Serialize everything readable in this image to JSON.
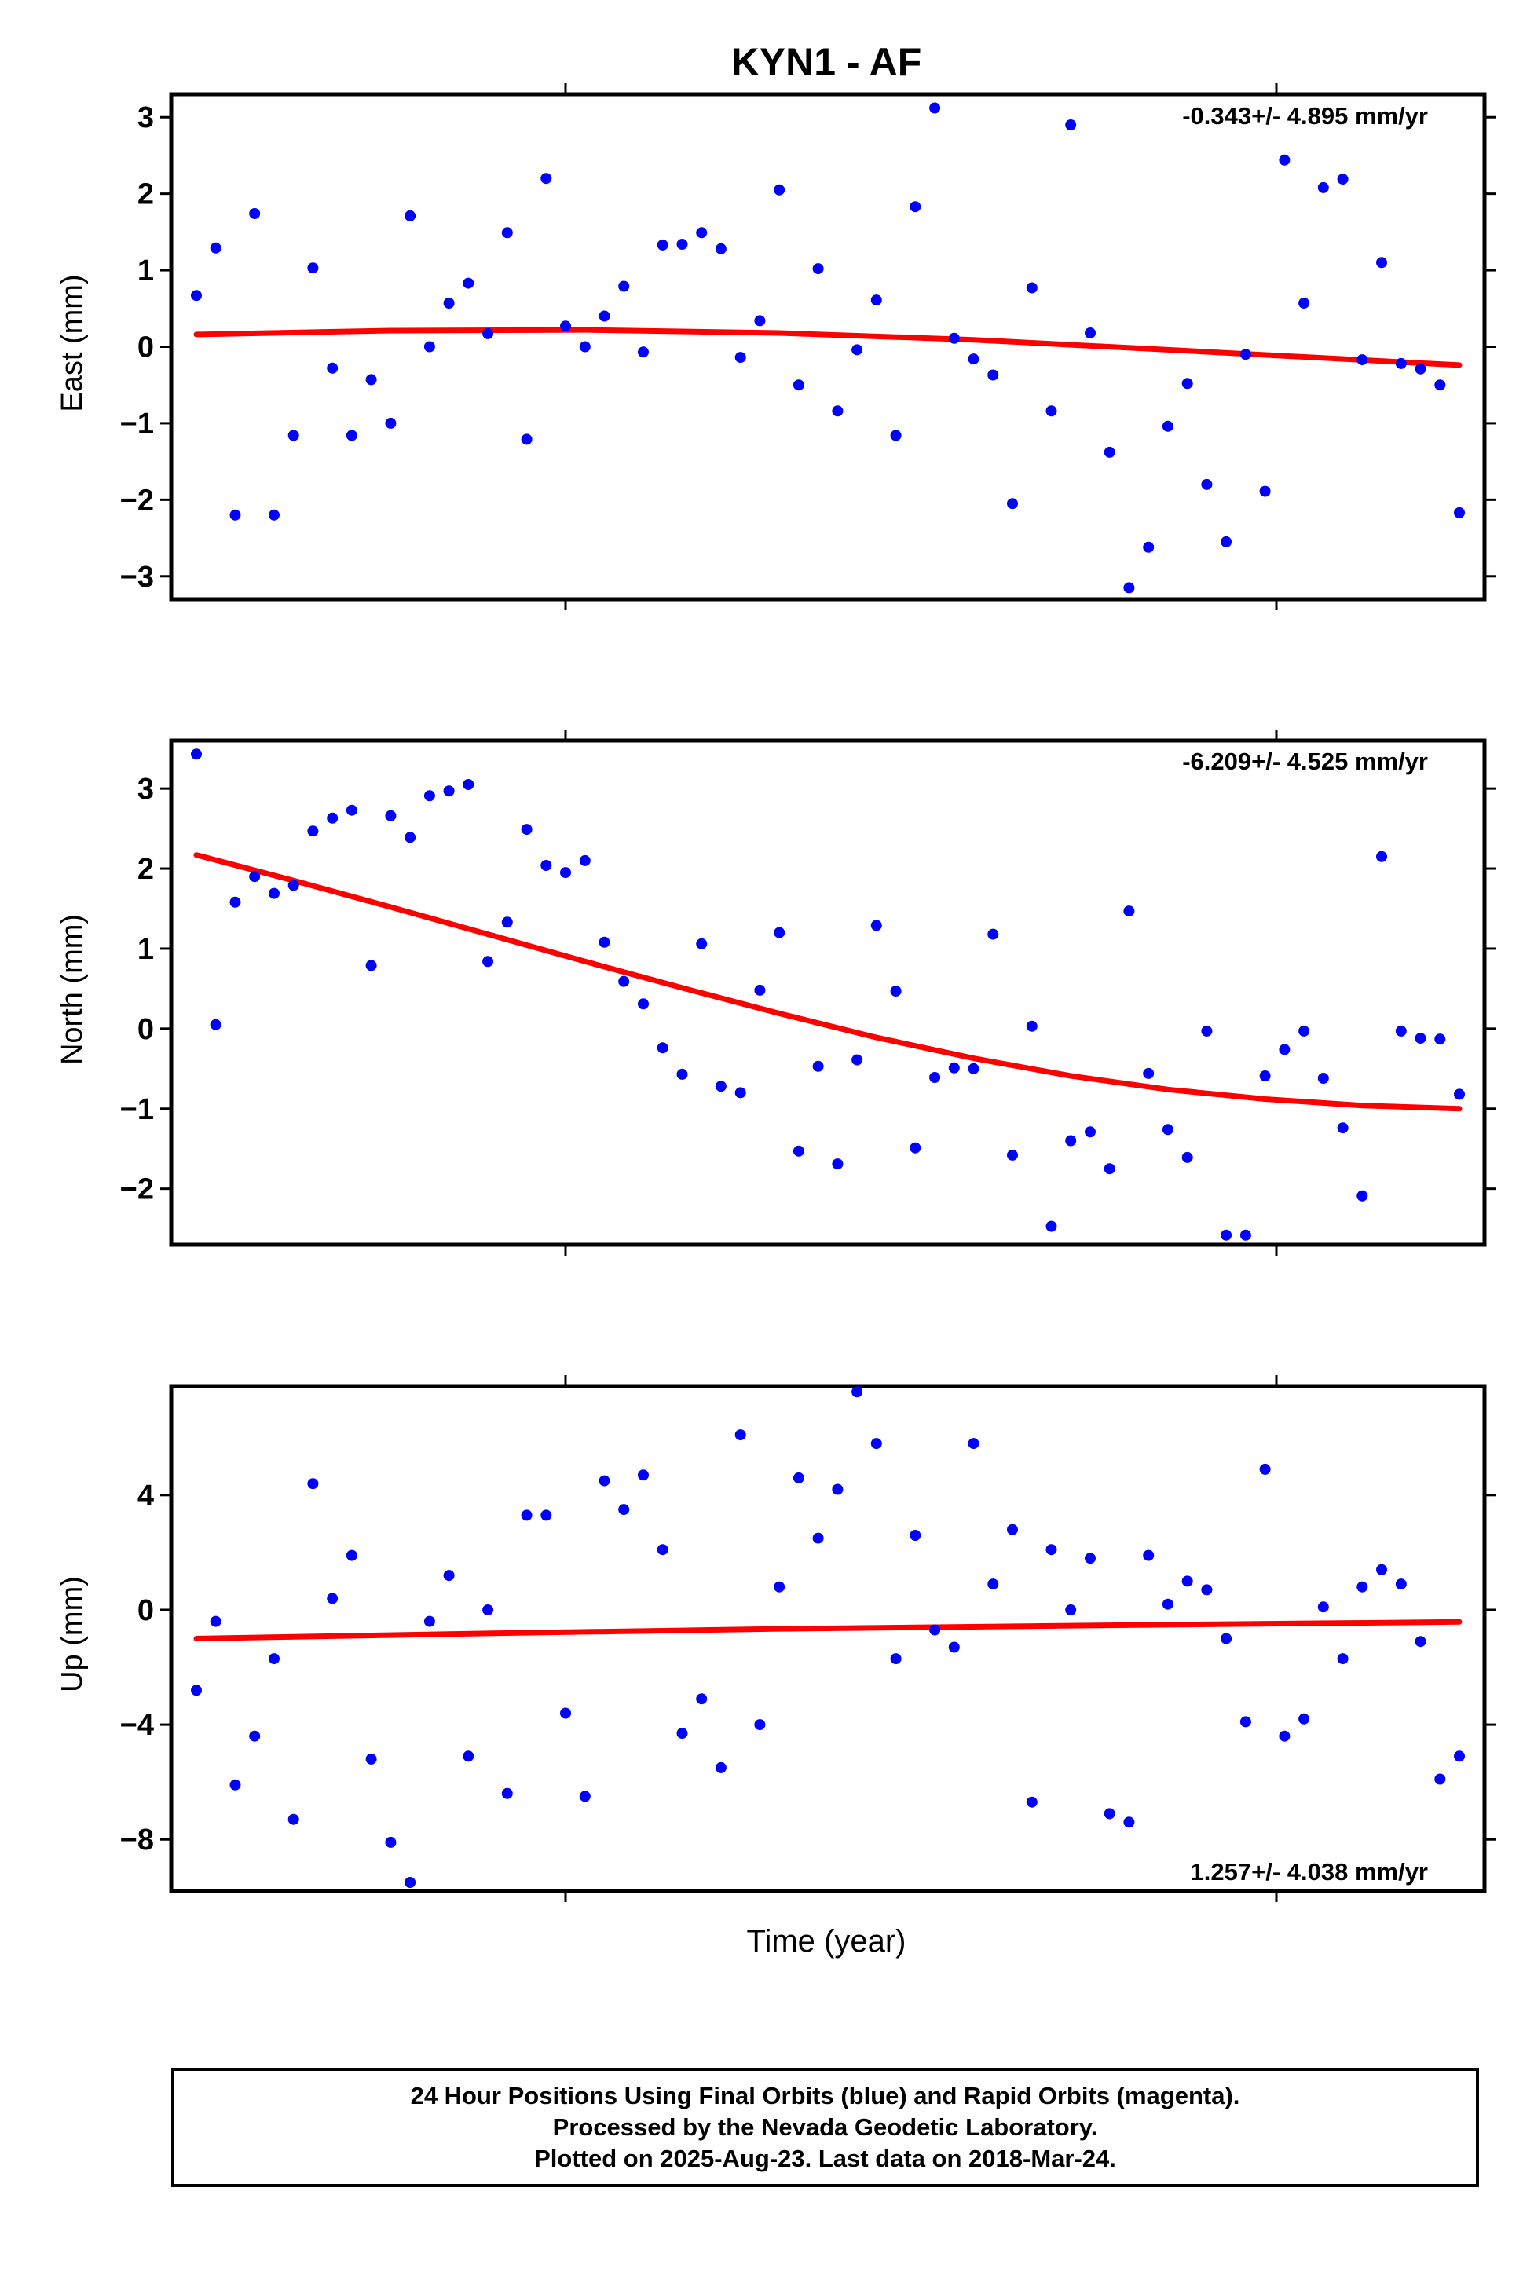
{
  "title": "KYN1 - AF",
  "xlabel": "Time (year)",
  "colors": {
    "final_orbits": "#0000ff",
    "fit_line": "#ff0000",
    "axes": "#000000"
  },
  "caption": {
    "line1": "24 Hour Positions Using Final Orbits (blue) and Rapid Orbits (magenta).",
    "line2": "Processed by the Nevada Geodetic Laboratory.",
    "line3": "Plotted on 2025-Aug-23. Last data on 2018-Mar-24."
  },
  "chart_data": [
    {
      "type": "scatter",
      "panel": "east",
      "ylabel": "East (mm)",
      "rate": "-0.343+/- 4.895 mm/yr",
      "ylim": [
        -3.3,
        3.3
      ],
      "yticks": [
        -3,
        -2,
        -1,
        0,
        1,
        2,
        3
      ],
      "xlim": [
        0,
        68
      ],
      "grid": false,
      "series": [
        {
          "x": [
            0,
            1,
            2,
            3,
            4,
            5,
            6,
            7,
            8,
            9,
            10,
            11,
            12,
            13,
            14,
            15,
            16,
            17,
            18,
            19,
            20,
            21,
            22,
            23,
            24,
            25,
            26,
            27,
            28,
            29,
            30,
            31,
            32,
            33,
            34,
            35,
            36,
            37,
            38,
            39,
            40,
            41,
            42,
            43,
            44,
            45,
            46,
            47,
            48,
            49,
            50,
            51,
            52,
            53,
            54,
            55,
            56,
            57,
            58,
            59,
            60,
            61,
            62,
            63,
            64,
            65
          ],
          "y": [
            0.67,
            1.29,
            -2.2,
            1.74,
            -2.2,
            -1.16,
            1.03,
            -0.28,
            -1.16,
            -0.43,
            -1.0,
            1.71,
            0.0,
            0.57,
            0.83,
            0.17,
            1.49,
            -1.21,
            2.2,
            0.27,
            0.0,
            0.4,
            0.79,
            -0.07,
            1.33,
            1.34,
            1.49,
            1.28,
            -0.14,
            0.34,
            2.05,
            -0.5,
            1.02,
            -0.84,
            -0.04,
            0.61,
            -1.16,
            1.83,
            3.12,
            0.11,
            -0.16,
            -0.37,
            -2.05,
            0.77,
            -0.84,
            2.9,
            0.18,
            -1.38,
            -3.15,
            -2.62,
            -1.04,
            -0.48,
            -1.8,
            -2.55,
            -0.1,
            -1.89,
            2.44,
            0.57,
            2.08,
            2.19,
            -0.17,
            1.1,
            -0.22,
            -0.29,
            -0.5,
            -2.17
          ]
        }
      ],
      "fit": {
        "x": [
          0,
          10,
          20,
          30,
          40,
          50,
          65
        ],
        "y": [
          0.16,
          0.21,
          0.22,
          0.18,
          0.09,
          -0.04,
          -0.24
        ]
      }
    },
    {
      "type": "scatter",
      "panel": "north",
      "ylabel": "North (mm)",
      "rate": "-6.209+/- 4.525 mm/yr",
      "ylim": [
        -2.7,
        3.6
      ],
      "yticks": [
        -2,
        -1,
        0,
        1,
        2,
        3
      ],
      "xlim": [
        0,
        68
      ],
      "grid": false,
      "series": [
        {
          "x": [
            0,
            1,
            2,
            3,
            4,
            5,
            6,
            7,
            8,
            9,
            10,
            11,
            12,
            13,
            14,
            15,
            16,
            17,
            18,
            19,
            20,
            21,
            22,
            23,
            24,
            25,
            26,
            27,
            28,
            29,
            30,
            31,
            32,
            33,
            34,
            35,
            36,
            37,
            38,
            39,
            40,
            41,
            42,
            43,
            44,
            45,
            46,
            47,
            48,
            49,
            50,
            51,
            52,
            53,
            54,
            55,
            56,
            57,
            58,
            59,
            60,
            61,
            62,
            63,
            64,
            65
          ],
          "y": [
            3.43,
            0.05,
            1.58,
            1.9,
            1.69,
            1.79,
            2.47,
            2.63,
            2.73,
            0.79,
            2.66,
            2.39,
            2.91,
            2.97,
            3.05,
            0.84,
            1.33,
            2.49,
            2.04,
            1.95,
            2.1,
            1.08,
            0.59,
            0.31,
            -0.24,
            -0.57,
            1.06,
            -0.72,
            -0.8,
            0.48,
            1.2,
            -1.53,
            -0.47,
            -1.69,
            -0.39,
            1.29,
            0.47,
            -1.49,
            -0.61,
            -0.49,
            -0.5,
            1.18,
            -1.58,
            0.03,
            -2.47,
            -1.4,
            -1.29,
            -1.75,
            1.47,
            -0.56,
            -1.26,
            -1.61,
            -0.03,
            -2.58,
            -2.58,
            -0.59,
            -0.26,
            -0.03,
            -0.62,
            -1.24,
            -2.09,
            2.15,
            -0.03,
            -0.12,
            -0.13,
            -0.82
          ]
        }
      ],
      "fit": {
        "x": [
          0,
          5,
          10,
          15,
          20,
          25,
          30,
          35,
          40,
          45,
          50,
          55,
          60,
          65
        ],
        "y": [
          2.17,
          1.85,
          1.52,
          1.18,
          0.84,
          0.51,
          0.19,
          -0.11,
          -0.37,
          -0.59,
          -0.76,
          -0.88,
          -0.96,
          -1.0
        ]
      }
    },
    {
      "type": "scatter",
      "panel": "up",
      "ylabel": "Up (mm)",
      "rate": "1.257+/- 4.038 mm/yr",
      "ylim": [
        -9.8,
        7.8
      ],
      "yticks": [
        -8,
        -4,
        0,
        4
      ],
      "xlim": [
        0,
        68
      ],
      "grid": false,
      "series": [
        {
          "x": [
            0,
            1,
            2,
            3,
            4,
            5,
            6,
            7,
            8,
            9,
            10,
            11,
            12,
            13,
            14,
            15,
            16,
            17,
            18,
            19,
            20,
            21,
            22,
            23,
            24,
            25,
            26,
            27,
            28,
            29,
            30,
            31,
            32,
            33,
            34,
            35,
            36,
            37,
            38,
            39,
            40,
            41,
            42,
            43,
            44,
            45,
            46,
            47,
            48,
            49,
            50,
            51,
            52,
            53,
            54,
            55,
            56,
            57,
            58,
            59,
            60,
            61,
            62,
            63,
            64,
            65
          ],
          "y": [
            -2.8,
            -0.4,
            -6.1,
            -4.4,
            -1.7,
            -7.3,
            4.4,
            0.4,
            1.9,
            -5.2,
            -8.1,
            -9.5,
            -0.4,
            1.2,
            -5.1,
            0.0,
            -6.4,
            3.3,
            3.3,
            -3.6,
            -6.5,
            4.5,
            3.5,
            4.7,
            2.1,
            -4.3,
            -3.1,
            -5.5,
            6.1,
            -4.0,
            0.8,
            4.6,
            2.5,
            4.2,
            7.6,
            5.8,
            -1.7,
            2.6,
            -0.7,
            -1.3,
            5.8,
            0.9,
            2.8,
            -6.7,
            2.1,
            0.0,
            1.8,
            -7.1,
            -7.4,
            1.9,
            0.2,
            1.0,
            0.7,
            -1.0,
            -3.9,
            4.9,
            -4.4,
            -3.8,
            0.1,
            -1.7,
            0.8,
            1.4,
            0.9,
            -1.1,
            -5.9,
            -5.1
          ]
        }
      ],
      "fit": {
        "x": [
          0,
          15,
          30,
          45,
          65
        ],
        "y": [
          -1.0,
          -0.82,
          -0.66,
          -0.55,
          -0.42
        ]
      }
    }
  ]
}
